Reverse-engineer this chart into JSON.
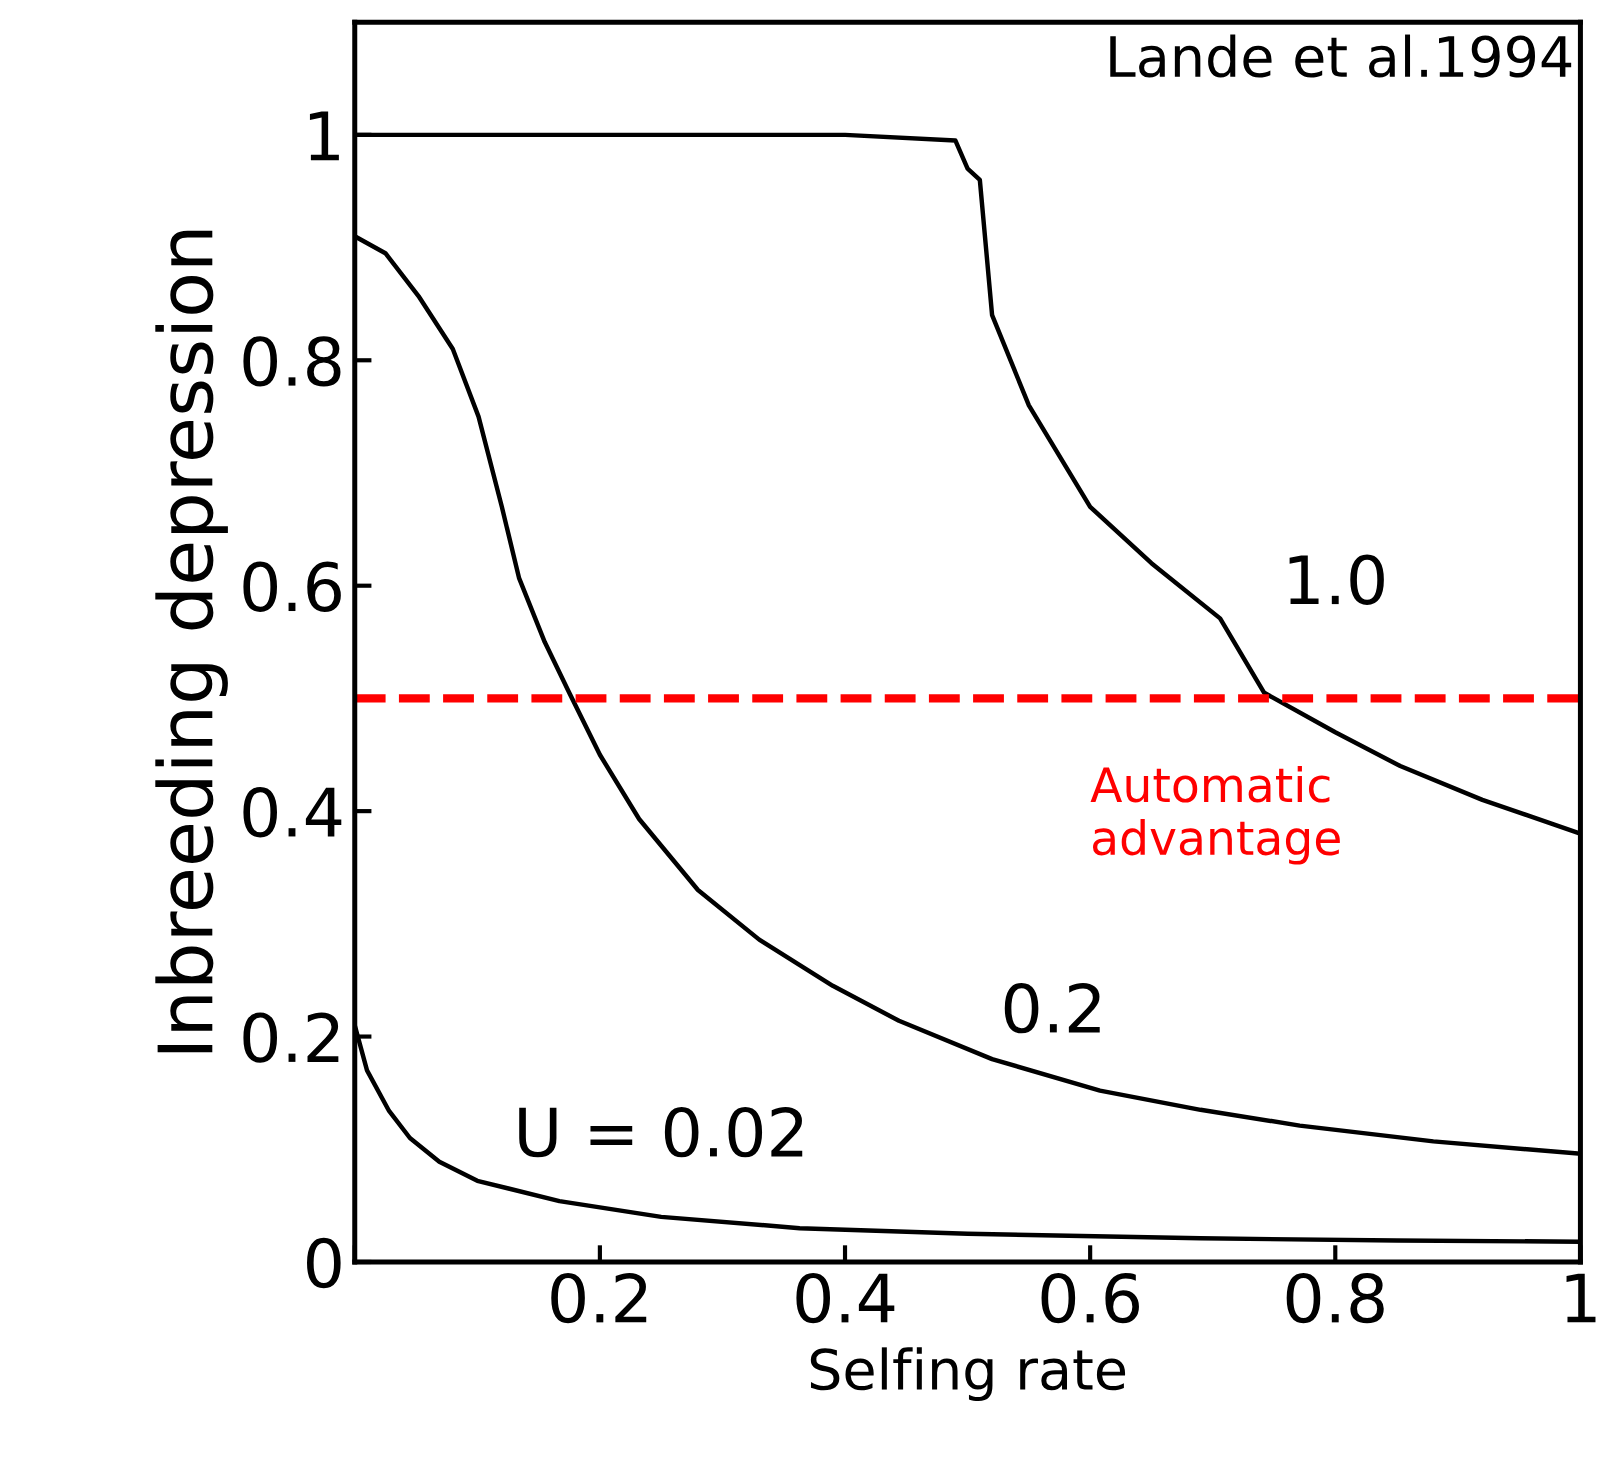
{
  "chart_data": {
    "type": "line",
    "xlabel": "Selfing rate",
    "ylabel": "Inbreeding depression",
    "xlim": [
      0,
      1
    ],
    "ylim": [
      0,
      1.1
    ],
    "xticks": [
      {
        "value": 0,
        "label": null
      },
      0.2,
      0.4,
      0.6,
      0.8,
      {
        "value": 1,
        "label": "1"
      }
    ],
    "yticks": [
      0,
      0.2,
      0.4,
      0.6,
      0.8,
      1
    ],
    "grid": false,
    "legend": false,
    "marker": "none",
    "line_style": "solid",
    "series": [
      {
        "name": "1.0",
        "color": "#000000",
        "x": [
          0,
          0.1,
          0.2,
          0.3,
          0.4,
          0.49,
          0.5,
          0.51,
          0.52,
          0.55,
          0.6,
          0.65,
          0.706,
          0.742,
          0.8,
          0.853,
          0.92,
          1
        ],
        "values": [
          1,
          1,
          1,
          1,
          1,
          0.995,
          0.97,
          0.96,
          0.84,
          0.76,
          0.67,
          0.62,
          0.571,
          0.505,
          0.47,
          0.44,
          0.41,
          0.38
        ]
      },
      {
        "name": "0.2",
        "color": "#000000",
        "x": [
          0,
          0.025,
          0.052,
          0.08,
          0.101,
          0.12,
          0.134,
          0.155,
          0.175,
          0.2,
          0.232,
          0.28,
          0.33,
          0.39,
          0.444,
          0.52,
          0.608,
          0.69,
          0.771,
          0.88,
          1
        ],
        "values": [
          0.91,
          0.895,
          0.857,
          0.81,
          0.75,
          0.67,
          0.607,
          0.55,
          0.505,
          0.45,
          0.393,
          0.33,
          0.286,
          0.245,
          0.214,
          0.18,
          0.152,
          0.135,
          0.121,
          0.107,
          0.096
        ]
      },
      {
        "name": "U = 0.02",
        "color": "#000000",
        "x": [
          0,
          0.01,
          0.028,
          0.045,
          0.069,
          0.1,
          0.167,
          0.25,
          0.363,
          0.5,
          0.69,
          0.85,
          1
        ],
        "values": [
          0.21,
          0.17,
          0.134,
          0.11,
          0.089,
          0.072,
          0.054,
          0.04,
          0.03,
          0.025,
          0.021,
          0.019,
          0.018
        ]
      }
    ],
    "ref_lines": [
      {
        "axis": "y",
        "value": 0.5,
        "label": "Automatic\nadvantage",
        "color": "#ff0000",
        "line_style": "dashed"
      }
    ],
    "annotations": [
      "Lande et al.1994"
    ]
  }
}
